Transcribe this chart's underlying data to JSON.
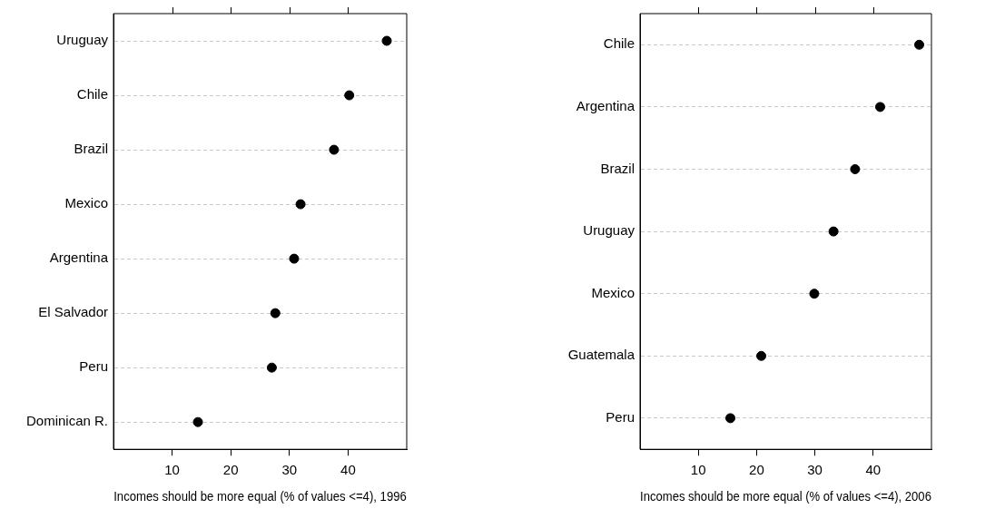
{
  "chart_data": [
    {
      "type": "scatter",
      "orientation": "horizontal",
      "categories": [
        "Uruguay",
        "Chile",
        "Brazil",
        "Mexico",
        "Argentina",
        "El Salvador",
        "Peru",
        "Dominican R."
      ],
      "values": [
        46.6,
        40.2,
        37.6,
        31.9,
        30.8,
        27.6,
        27.0,
        14.4
      ],
      "color": "#000000",
      "xlabel": "Incomes should be more equal (% of values <=4), 1996",
      "xlim": [
        0,
        50
      ],
      "xticks": [
        10,
        20,
        30,
        40
      ],
      "grid": "y",
      "legend": false,
      "marker": "circle"
    },
    {
      "type": "scatter",
      "orientation": "horizontal",
      "categories": [
        "Chile",
        "Argentina",
        "Brazil",
        "Uruguay",
        "Mexico",
        "Guatemala",
        "Peru"
      ],
      "values": [
        47.9,
        41.2,
        36.9,
        33.2,
        29.9,
        20.8,
        15.5
      ],
      "color": "#000000",
      "xlabel": "Incomes should be more equal (% of values <=4), 2006",
      "xlim": [
        0,
        50
      ],
      "xticks": [
        10,
        20,
        30,
        40
      ],
      "grid": "y",
      "legend": false,
      "marker": "circle"
    }
  ]
}
